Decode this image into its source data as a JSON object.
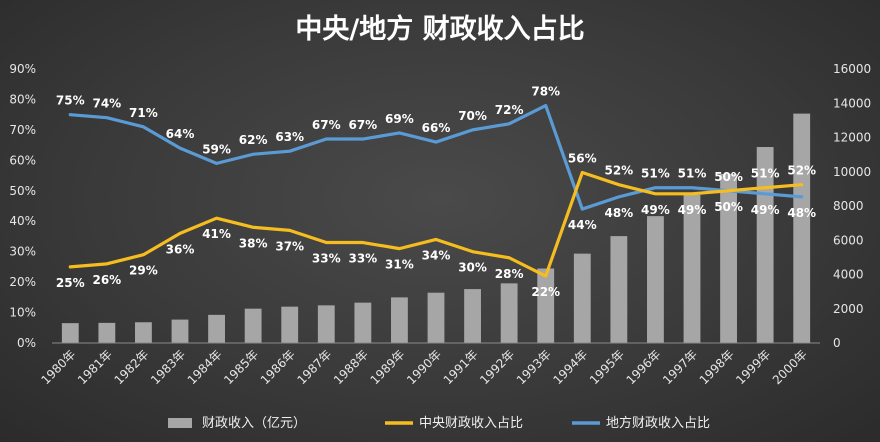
{
  "chart_data": {
    "type": "bar",
    "title": "中央/地方 财政收入占比",
    "categories": [
      "1980年",
      "1981年",
      "1982年",
      "1983年",
      "1984年",
      "1985年",
      "1986年",
      "1987年",
      "1988年",
      "1989年",
      "1990年",
      "1991年",
      "1992年",
      "1993年",
      "1994年",
      "1995年",
      "1996年",
      "1997年",
      "1998年",
      "1999年",
      "2000年"
    ],
    "y_left": {
      "ticks": [
        "0%",
        "10%",
        "20%",
        "30%",
        "40%",
        "50%",
        "60%",
        "70%",
        "80%",
        "90%"
      ],
      "range": [
        0,
        90
      ]
    },
    "y_right": {
      "ticks": [
        "0",
        "2000",
        "4000",
        "6000",
        "8000",
        "10000",
        "12000",
        "14000",
        "16000"
      ],
      "range": [
        0,
        16000
      ]
    },
    "series": [
      {
        "name": "财政收入（亿元）",
        "type": "bar",
        "axis": "right",
        "color": "#a6a6a6",
        "values": [
          1160,
          1176,
          1212,
          1367,
          1643,
          2005,
          2122,
          2199,
          2357,
          2665,
          2937,
          3149,
          3483,
          4349,
          5218,
          6242,
          7408,
          8651,
          9876,
          11444,
          13395
        ]
      },
      {
        "name": "中央财政收入占比",
        "type": "line",
        "axis": "left",
        "color": "#f5bd1f",
        "values": [
          25,
          26,
          29,
          36,
          41,
          38,
          37,
          33,
          33,
          31,
          34,
          30,
          28,
          22,
          56,
          52,
          49,
          49,
          50,
          51,
          52
        ],
        "labels": [
          "25%",
          "26%",
          "29%",
          "36%",
          "41%",
          "38%",
          "37%",
          "33%",
          "33%",
          "31%",
          "34%",
          "30%",
          "28%",
          "22%",
          "56%",
          "52%",
          "49%",
          "49%",
          "50%",
          "51%",
          "52%"
        ]
      },
      {
        "name": "地方财政收入占比",
        "type": "line",
        "axis": "left",
        "color": "#5b9bd5",
        "values": [
          75,
          74,
          71,
          64,
          59,
          62,
          63,
          67,
          67,
          69,
          66,
          70,
          72,
          78,
          44,
          48,
          51,
          51,
          50,
          49,
          48
        ],
        "labels": [
          "75%",
          "74%",
          "71%",
          "64%",
          "59%",
          "62%",
          "63%",
          "67%",
          "67%",
          "69%",
          "66%",
          "70%",
          "72%",
          "78%",
          "44%",
          "48%",
          "51%",
          "51%",
          "50%",
          "49%",
          "48%"
        ]
      }
    ],
    "legend_position": "bottom",
    "grid": false
  }
}
